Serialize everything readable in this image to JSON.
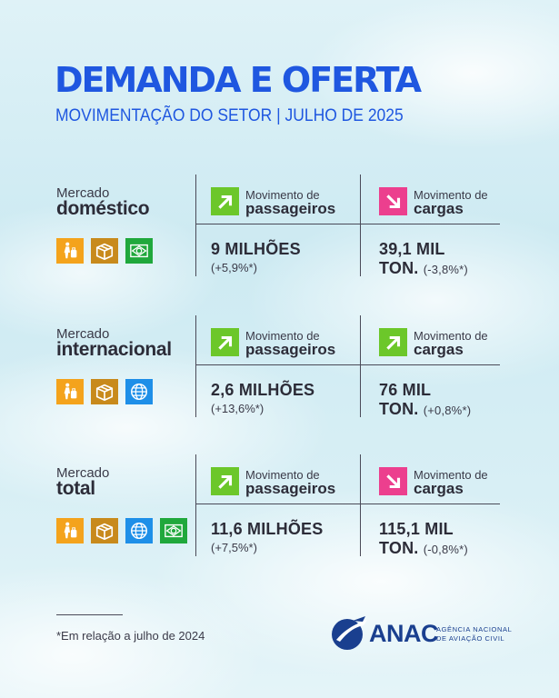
{
  "header": {
    "title": "DEMANDA E OFERTA",
    "subtitle": "MOVIMENTAÇÃO DO SETOR | JULHO DE 2025"
  },
  "sections": [
    {
      "market_label": "Mercado",
      "market_name": "doméstico",
      "icons": [
        "luggage-icon",
        "cargo-box-icon",
        "brazil-flag-icon"
      ],
      "passengers": {
        "label": "Movimento de",
        "name": "passageiros",
        "trend": "up",
        "value": "9 MILHÕES",
        "change": "(+5,9%*)"
      },
      "cargo": {
        "label": "Movimento de",
        "name": "cargas",
        "trend": "down",
        "value": "39,1 MIL",
        "value2": "TON.",
        "change": "(-3,8%*)"
      }
    },
    {
      "market_label": "Mercado",
      "market_name": "internacional",
      "icons": [
        "luggage-icon",
        "cargo-box-icon",
        "globe-icon"
      ],
      "passengers": {
        "label": "Movimento de",
        "name": "passageiros",
        "trend": "up",
        "value": "2,6 MILHÕES",
        "change": "(+13,6%*)"
      },
      "cargo": {
        "label": "Movimento de",
        "name": "cargas",
        "trend": "up",
        "value": "76 MIL",
        "value2": "TON.",
        "change": "(+0,8%*)"
      }
    },
    {
      "market_label": "Mercado",
      "market_name": "total",
      "icons": [
        "luggage-icon",
        "cargo-box-icon",
        "globe-icon",
        "brazil-flag-icon"
      ],
      "passengers": {
        "label": "Movimento de",
        "name": "passageiros",
        "trend": "up",
        "value": "11,6 MILHÕES",
        "change": "(+7,5%*)"
      },
      "cargo": {
        "label": "Movimento de",
        "name": "cargas",
        "trend": "down",
        "value": "115,1 MIL",
        "value2": "TON.",
        "change": "(-0,8%*)"
      }
    }
  ],
  "footer": {
    "note": "*Em relação a julho de 2024",
    "logo_text": "ANAC",
    "logo_sub_1": "AGÊNCIA NACIONAL",
    "logo_sub_2": "DE AVIAÇÃO CIVIL"
  },
  "colors": {
    "title": "#1f57e0",
    "up_arrow": "#6cc72a",
    "down_arrow": "#ec3f8e",
    "icon_orange": "#f4a31c",
    "icon_brown": "#c88a1c",
    "icon_blue": "#1e8fe8",
    "icon_green": "#20a83c"
  }
}
